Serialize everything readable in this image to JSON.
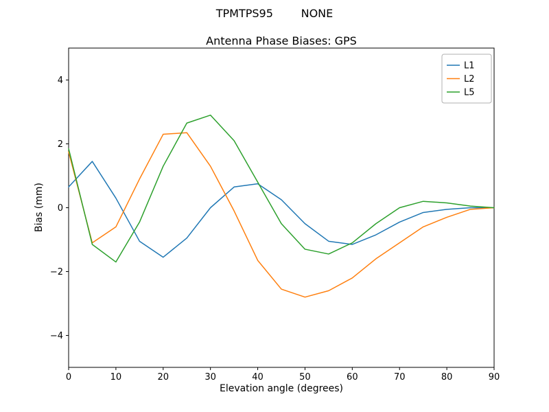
{
  "chart_data": {
    "type": "line",
    "suptitle": "TPMTPS95        NONE",
    "title": "Antenna Phase Biases: GPS",
    "xlabel": "Elevation angle (degrees)",
    "ylabel": "Bias (mm)",
    "xlim": [
      0,
      90
    ],
    "ylim": [
      -5,
      5
    ],
    "xticks": [
      0,
      10,
      20,
      30,
      40,
      50,
      60,
      70,
      80,
      90
    ],
    "yticks": [
      -4,
      -2,
      0,
      2,
      4
    ],
    "grid": false,
    "legend_position": "upper right",
    "x": [
      0,
      5,
      10,
      15,
      20,
      25,
      30,
      35,
      40,
      45,
      50,
      55,
      60,
      65,
      70,
      75,
      80,
      85,
      90
    ],
    "series": [
      {
        "name": "L1",
        "color": "#1f77b4",
        "values": [
          0.65,
          1.45,
          0.3,
          -1.05,
          -1.55,
          -0.95,
          0.0,
          0.65,
          0.75,
          0.25,
          -0.5,
          -1.05,
          -1.15,
          -0.85,
          -0.45,
          -0.15,
          -0.05,
          0.0,
          0.0
        ]
      },
      {
        "name": "L2",
        "color": "#ff7f0e",
        "values": [
          1.75,
          -1.1,
          -0.6,
          0.9,
          2.3,
          2.35,
          1.3,
          -0.1,
          -1.65,
          -2.55,
          -2.8,
          -2.6,
          -2.2,
          -1.6,
          -1.1,
          -0.6,
          -0.3,
          -0.05,
          0.0
        ]
      },
      {
        "name": "L5",
        "color": "#2ca02c",
        "values": [
          1.85,
          -1.15,
          -1.7,
          -0.45,
          1.3,
          2.65,
          2.9,
          2.1,
          0.8,
          -0.5,
          -1.3,
          -1.45,
          -1.1,
          -0.5,
          0.0,
          0.2,
          0.15,
          0.05,
          0.0
        ]
      }
    ]
  }
}
